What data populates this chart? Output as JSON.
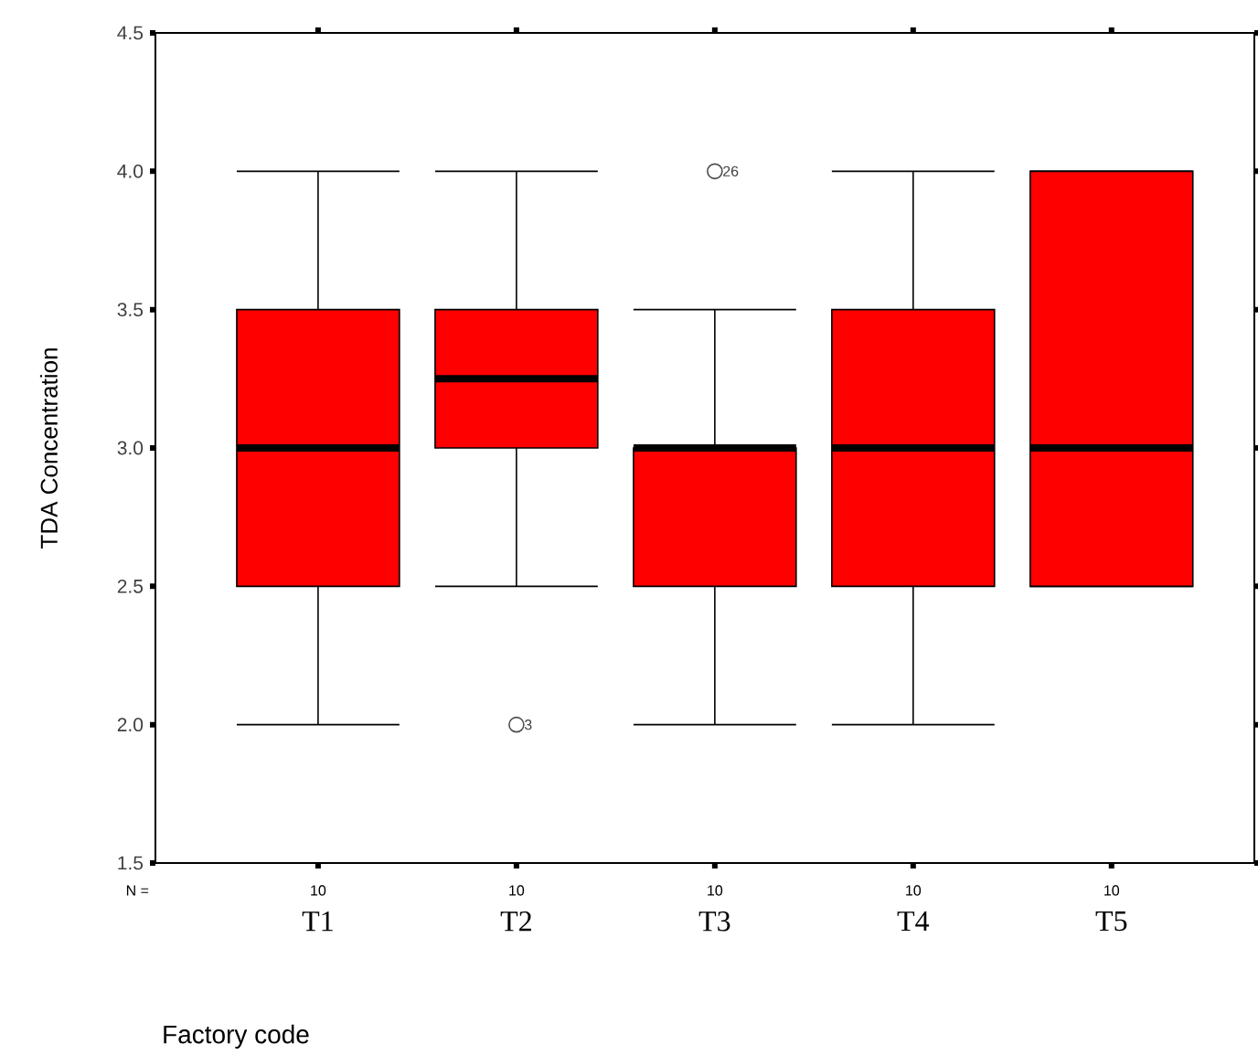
{
  "chart_data": {
    "type": "box",
    "categories": [
      "T1",
      "T2",
      "T3",
      "T4",
      "T5"
    ],
    "boxes": [
      {
        "low": 2.0,
        "q1": 2.5,
        "median": 3.0,
        "q3": 3.5,
        "high": 4.0
      },
      {
        "low": 2.5,
        "q1": 3.0,
        "median": 3.25,
        "q3": 3.5,
        "high": 4.0,
        "outliers": [
          2.0
        ]
      },
      {
        "low": 2.0,
        "q1": 2.5,
        "median": 3.0,
        "q3": 3.0,
        "high": 3.5,
        "outliers": [
          4.0
        ]
      },
      {
        "low": 2.0,
        "q1": 2.5,
        "median": 3.0,
        "q3": 3.5,
        "high": 4.0
      },
      {
        "low": 2.5,
        "q1": 2.5,
        "median": 3.0,
        "q3": 4.0,
        "high": 4.0
      }
    ],
    "color": "#ff0000",
    "ylim": [
      1.5,
      4.5
    ],
    "yticks": [
      {
        "value": 1.5,
        "label": "1.5"
      },
      {
        "value": 2.0,
        "label": "2.0"
      },
      {
        "value": 2.5,
        "label": "2.5"
      },
      {
        "value": 3.0,
        "label": "3.0"
      },
      {
        "value": 3.5,
        "label": "3.5"
      },
      {
        "value": 4.0,
        "label": "4.0"
      },
      {
        "value": 4.5,
        "label": "4.5"
      }
    ],
    "ylabel": "TDA Concentration",
    "xlabel": "Factory code",
    "grid": false,
    "annotations": [
      "3",
      "26",
      "N =",
      "10",
      "10",
      "10",
      "10",
      "10"
    ]
  }
}
